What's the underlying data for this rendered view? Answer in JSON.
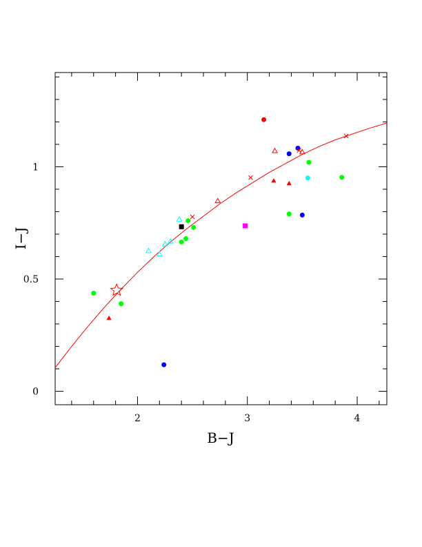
{
  "chart_data": {
    "type": "scatter",
    "xlabel": "B−J",
    "ylabel": "I−J",
    "xlim": [
      1.25,
      4.27
    ],
    "ylim": [
      -0.06,
      1.42
    ],
    "x_ticks": [
      {
        "value": 2,
        "label": "2"
      },
      {
        "value": 3,
        "label": "3"
      },
      {
        "value": 4,
        "label": "4"
      }
    ],
    "y_ticks": [
      {
        "value": 0,
        "label": "0"
      },
      {
        "value": 0.5,
        "label": "0.5"
      },
      {
        "value": 1,
        "label": "1"
      }
    ],
    "grid": false,
    "curve": {
      "color": "#ff0000",
      "x": [
        1.25,
        1.4,
        1.55,
        1.7,
        1.85,
        2.0,
        2.15,
        2.3,
        2.45,
        2.6,
        2.75,
        2.9,
        3.05,
        3.2,
        3.35,
        3.5,
        3.65,
        3.8,
        3.95,
        4.1,
        4.27
      ],
      "y": [
        0.105,
        0.2,
        0.29,
        0.375,
        0.455,
        0.53,
        0.6,
        0.665,
        0.725,
        0.78,
        0.835,
        0.885,
        0.93,
        0.975,
        1.015,
        1.055,
        1.09,
        1.12,
        1.145,
        1.17,
        1.195
      ]
    },
    "series": [
      {
        "marker": "filled-circle",
        "color": "#00ff00",
        "points": [
          [
            1.6,
            0.437
          ],
          [
            1.85,
            0.39
          ],
          [
            2.4,
            0.665
          ],
          [
            2.44,
            0.68
          ],
          [
            2.46,
            0.76
          ],
          [
            2.51,
            0.73
          ],
          [
            3.38,
            0.79
          ],
          [
            3.56,
            1.02
          ],
          [
            3.86,
            0.953
          ]
        ]
      },
      {
        "marker": "filled-circle",
        "color": "#0000ff",
        "points": [
          [
            2.24,
            0.118
          ],
          [
            3.38,
            1.058
          ],
          [
            3.46,
            1.083
          ],
          [
            3.5,
            0.785
          ]
        ]
      },
      {
        "marker": "filled-circle",
        "color": "#ff0000",
        "points": [
          [
            3.15,
            1.21
          ]
        ]
      },
      {
        "marker": "filled-circle",
        "color": "#00ffff",
        "points": [
          [
            3.55,
            0.95
          ]
        ]
      },
      {
        "marker": "filled-square",
        "color": "#000000",
        "points": [
          [
            2.4,
            0.733
          ]
        ]
      },
      {
        "marker": "filled-square",
        "color": "#ff00ff",
        "points": [
          [
            2.98,
            0.737
          ]
        ]
      },
      {
        "marker": "filled-triangle",
        "color": "#ff0000",
        "points": [
          [
            1.74,
            0.325
          ],
          [
            3.24,
            0.937
          ],
          [
            3.38,
            0.925
          ]
        ]
      },
      {
        "marker": "open-triangle",
        "color": "#00ffff",
        "points": [
          [
            2.1,
            0.625
          ],
          [
            2.2,
            0.61
          ],
          [
            2.25,
            0.655
          ],
          [
            2.3,
            0.667
          ],
          [
            2.38,
            0.765
          ]
        ]
      },
      {
        "marker": "open-triangle",
        "color": "#ff0000",
        "points": [
          [
            2.73,
            0.847
          ],
          [
            3.25,
            1.07
          ],
          [
            3.5,
            1.065
          ]
        ]
      },
      {
        "marker": "cross",
        "color": "#ff0000",
        "points": [
          [
            2.5,
            0.777
          ],
          [
            3.03,
            0.952
          ],
          [
            3.47,
            1.073
          ],
          [
            3.9,
            1.137
          ]
        ]
      },
      {
        "marker": "open-star",
        "color": "#ff0000",
        "points": [
          [
            1.81,
            0.45
          ]
        ]
      }
    ]
  }
}
